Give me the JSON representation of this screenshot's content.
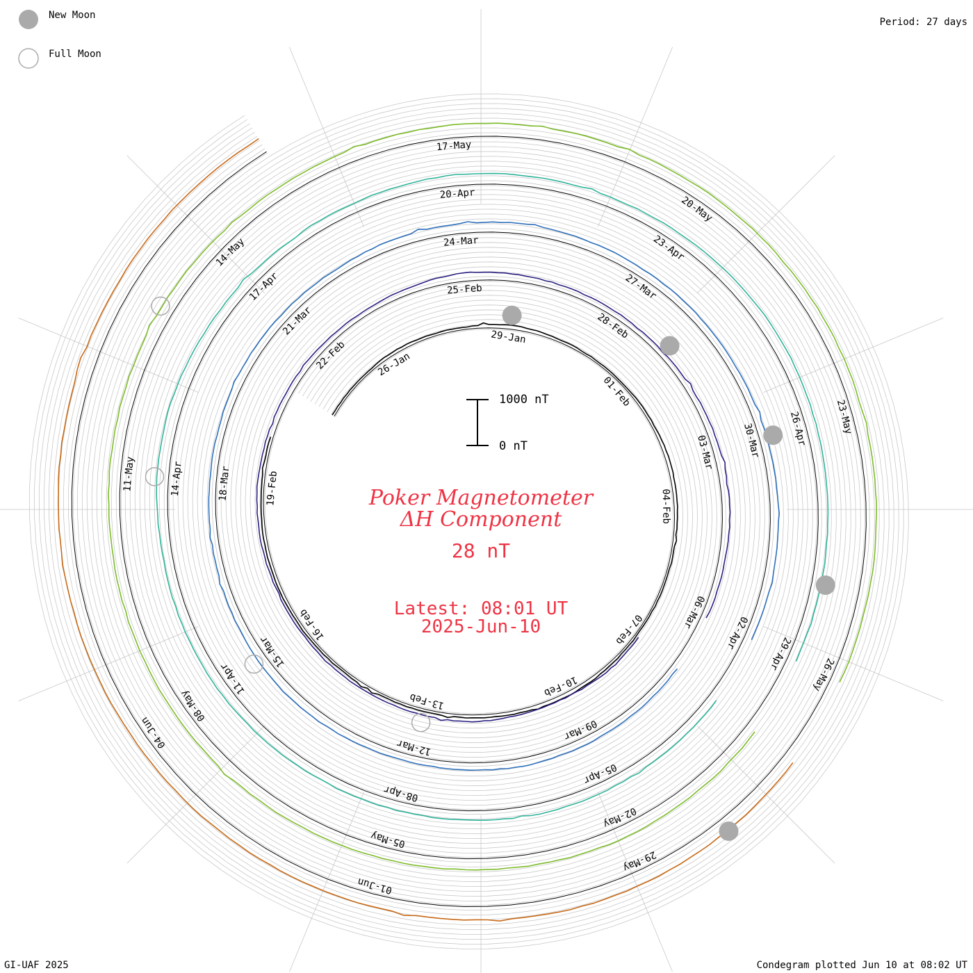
{
  "legend": {
    "new_moon": "New Moon",
    "full_moon": "Full Moon"
  },
  "period_label": "Period: 27 days",
  "footer_left": "GI-UAF 2025",
  "footer_right": "Condegram plotted Jun 10 at 08:02 UT",
  "center": {
    "title_line1": "Poker Magnetometer",
    "title_line2": "ΔH Component",
    "value": "28 nT",
    "latest_line1": "Latest: 08:01 UT",
    "latest_line2": "2025-Jun-10",
    "scale_top": "1000 nT",
    "scale_bottom": "0 nT",
    "title_color": "#ee3344"
  },
  "colors": {
    "new_moon": "#aaaaaa",
    "full_moon": "#aaaaaa",
    "grid": "#c8c8c8",
    "baseline": "#000000"
  },
  "chart_data": {
    "type": "line",
    "title": "Poker Magnetometer ΔH Component",
    "period_days": 27,
    "scale_bar_nT": [
      0,
      1000
    ],
    "series": [
      {
        "start": "2025-01-24",
        "color": "#000000",
        "date_labels": [
          "26-Jan",
          "29-Jan",
          "01-Feb",
          "04-Feb",
          "07-Feb"
        ],
        "values": [
          150,
          120,
          180,
          160,
          140,
          260,
          160,
          130,
          120,
          150,
          220,
          180,
          140,
          120,
          110,
          160,
          240,
          200,
          180,
          160,
          140,
          130,
          150,
          170,
          180,
          140,
          160
        ]
      },
      {
        "start": "2025-02-07",
        "color": "#2a2080",
        "date_labels": [
          "10-Feb",
          "13-Feb",
          "16-Feb",
          "19-Feb",
          "22-Feb",
          "25-Feb",
          "28-Feb",
          "03-Mar",
          "06-Mar"
        ],
        "values": [
          280,
          320,
          260,
          300,
          420,
          380,
          360,
          340,
          300,
          320,
          380,
          420,
          360,
          340,
          320,
          300,
          380,
          520,
          440,
          360,
          330,
          300,
          360,
          420,
          480,
          400,
          350
        ]
      },
      {
        "start": "2025-03-06",
        "color": "#2e6fba",
        "date_labels": [
          "09-Mar",
          "12-Mar",
          "15-Mar",
          "18-Mar",
          "21-Mar",
          "24-Mar",
          "27-Mar",
          "30-Mar",
          "02-Apr"
        ],
        "values": [
          380,
          420,
          460,
          500,
          440,
          420,
          480,
          560,
          520,
          460,
          420,
          400,
          440,
          500,
          460,
          440,
          560,
          600,
          640,
          540,
          480,
          460,
          420,
          440,
          500,
          520,
          480
        ]
      },
      {
        "start": "2025-04-02",
        "color": "#2fb39a",
        "date_labels": [
          "05-Apr",
          "08-Apr",
          "11-Apr",
          "14-Apr",
          "17-Apr",
          "20-Apr",
          "23-Apr",
          "26-Apr",
          "29-Apr"
        ],
        "values": [
          520,
          560,
          600,
          640,
          580,
          560,
          540,
          580,
          620,
          600,
          580,
          720,
          760,
          640,
          600,
          560,
          600,
          680,
          640,
          600,
          620,
          660,
          700,
          640,
          600,
          580,
          560
        ]
      },
      {
        "start": "2025-04-29",
        "color": "#7dbb2a",
        "date_labels": [
          "02-May",
          "05-May",
          "08-May",
          "11-May",
          "14-May",
          "17-May",
          "20-May",
          "23-May",
          "26-May"
        ],
        "values": [
          660,
          700,
          760,
          720,
          680,
          700,
          720,
          740,
          700,
          680,
          660,
          700,
          740,
          780,
          720,
          700,
          760,
          800,
          780,
          740,
          720,
          700,
          680,
          660,
          640,
          620,
          600
        ]
      },
      {
        "start": "2025-05-26",
        "color": "#c86a18",
        "date_labels": [
          "29-May",
          "01-Jun",
          "04-Jun"
        ],
        "values": [
          720,
          780,
          860,
          900,
          820,
          780,
          760,
          740,
          720,
          780,
          820,
          860,
          880,
          900,
          920,
          940
        ]
      }
    ],
    "new_moon_dates": [
      "2025-01-29",
      "2025-02-28",
      "2025-03-29",
      "2025-04-27",
      "2025-05-27"
    ],
    "full_moon_dates": [
      "2025-02-12",
      "2025-03-14",
      "2025-04-13",
      "2025-05-12"
    ]
  }
}
